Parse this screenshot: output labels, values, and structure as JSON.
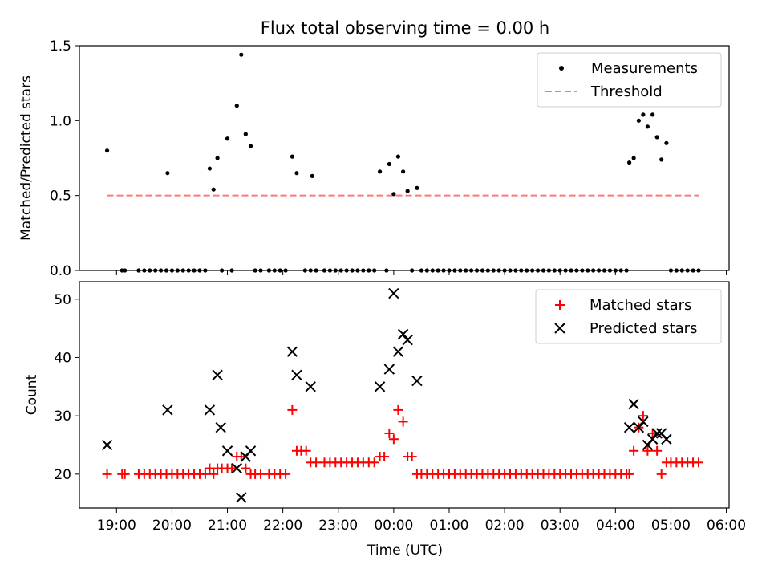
{
  "chart_data": [
    {
      "type": "scatter",
      "title": "Flux total observing time = 0.00 h",
      "ylabel": "Matched/Predicted stars",
      "ylim": [
        0,
        1.5
      ],
      "yticks": [
        "0.0",
        "0.5",
        "1.0",
        "1.5"
      ],
      "grid": false,
      "legend_position": "upper right",
      "legend": [
        "Measurements",
        "Threshold"
      ],
      "threshold": {
        "name": "Threshold",
        "value": 0.5,
        "x_range": [
          18.83,
          29.5
        ],
        "color": "#ff7777"
      },
      "series": [
        {
          "name": "Measurements",
          "color": "#000000",
          "points": [
            [
              18.83,
              0.8
            ],
            [
              19.1,
              0
            ],
            [
              19.15,
              0
            ],
            [
              19.4,
              0
            ],
            [
              19.5,
              0
            ],
            [
              19.6,
              0
            ],
            [
              19.7,
              0
            ],
            [
              19.8,
              0
            ],
            [
              19.9,
              0
            ],
            [
              19.92,
              0.65
            ],
            [
              20.0,
              0
            ],
            [
              20.1,
              0
            ],
            [
              20.2,
              0
            ],
            [
              20.3,
              0
            ],
            [
              20.4,
              0
            ],
            [
              20.5,
              0
            ],
            [
              20.6,
              0
            ],
            [
              20.68,
              0.68
            ],
            [
              20.75,
              0.54
            ],
            [
              20.82,
              0.75
            ],
            [
              20.9,
              0
            ],
            [
              21.0,
              0.88
            ],
            [
              21.08,
              0
            ],
            [
              21.17,
              1.1
            ],
            [
              21.25,
              1.44
            ],
            [
              21.33,
              0.91
            ],
            [
              21.42,
              0.83
            ],
            [
              21.5,
              0
            ],
            [
              21.6,
              0
            ],
            [
              21.75,
              0
            ],
            [
              21.85,
              0
            ],
            [
              21.95,
              0
            ],
            [
              22.05,
              0
            ],
            [
              22.17,
              0.76
            ],
            [
              22.25,
              0.65
            ],
            [
              22.4,
              0
            ],
            [
              22.5,
              0
            ],
            [
              22.53,
              0.63
            ],
            [
              22.6,
              0
            ],
            [
              22.75,
              0
            ],
            [
              22.85,
              0
            ],
            [
              22.95,
              0
            ],
            [
              23.05,
              0
            ],
            [
              23.15,
              0
            ],
            [
              23.25,
              0
            ],
            [
              23.35,
              0
            ],
            [
              23.45,
              0
            ],
            [
              23.55,
              0
            ],
            [
              23.65,
              0
            ],
            [
              23.75,
              0.66
            ],
            [
              23.87,
              0
            ],
            [
              23.92,
              0.71
            ],
            [
              24.0,
              0.51
            ],
            [
              24.08,
              0.76
            ],
            [
              24.17,
              0.66
            ],
            [
              24.25,
              0.53
            ],
            [
              24.33,
              0
            ],
            [
              24.42,
              0.55
            ],
            [
              24.5,
              0
            ],
            [
              24.6,
              0
            ],
            [
              24.7,
              0
            ],
            [
              24.8,
              0
            ],
            [
              24.9,
              0
            ],
            [
              25.0,
              0
            ],
            [
              25.1,
              0
            ],
            [
              25.2,
              0
            ],
            [
              25.3,
              0
            ],
            [
              25.4,
              0
            ],
            [
              25.5,
              0
            ],
            [
              25.6,
              0
            ],
            [
              25.7,
              0
            ],
            [
              25.8,
              0
            ],
            [
              25.9,
              0
            ],
            [
              26.0,
              0
            ],
            [
              26.1,
              0
            ],
            [
              26.2,
              0
            ],
            [
              26.3,
              0
            ],
            [
              26.4,
              0
            ],
            [
              26.5,
              0
            ],
            [
              26.6,
              0
            ],
            [
              26.7,
              0
            ],
            [
              26.8,
              0
            ],
            [
              26.9,
              0
            ],
            [
              27.0,
              0
            ],
            [
              27.1,
              0
            ],
            [
              27.2,
              0
            ],
            [
              27.3,
              0
            ],
            [
              27.4,
              0
            ],
            [
              27.5,
              0
            ],
            [
              27.6,
              0
            ],
            [
              27.7,
              0
            ],
            [
              27.8,
              0
            ],
            [
              27.9,
              0
            ],
            [
              28.0,
              0
            ],
            [
              28.1,
              0
            ],
            [
              28.2,
              0
            ],
            [
              28.25,
              0.72
            ],
            [
              28.33,
              0.75
            ],
            [
              28.42,
              1.0
            ],
            [
              28.5,
              1.04
            ],
            [
              28.58,
              0.96
            ],
            [
              28.67,
              1.04
            ],
            [
              28.75,
              0.89
            ],
            [
              28.83,
              0.74
            ],
            [
              28.92,
              0.85
            ],
            [
              29.0,
              0
            ],
            [
              29.1,
              0
            ],
            [
              29.2,
              0
            ],
            [
              29.3,
              0
            ],
            [
              29.4,
              0
            ],
            [
              29.5,
              0
            ]
          ]
        }
      ]
    },
    {
      "type": "scatter",
      "xlabel": "Time (UTC)",
      "ylabel": "Count",
      "xlim": [
        18.33,
        30.05
      ],
      "ylim": [
        14.2,
        53
      ],
      "yticks": [
        "20",
        "30",
        "40",
        "50"
      ],
      "xticks": [
        "19:00",
        "20:00",
        "21:00",
        "22:00",
        "23:00",
        "00:00",
        "01:00",
        "02:00",
        "03:00",
        "04:00",
        "05:00",
        "06:00"
      ],
      "grid": false,
      "legend_position": "upper right",
      "legend": [
        "Matched stars",
        "Predicted stars"
      ],
      "series": [
        {
          "name": "Matched stars",
          "marker": "+",
          "color": "#ff0000",
          "points": [
            [
              18.83,
              20
            ],
            [
              19.1,
              20
            ],
            [
              19.15,
              20
            ],
            [
              19.4,
              20
            ],
            [
              19.5,
              20
            ],
            [
              19.6,
              20
            ],
            [
              19.7,
              20
            ],
            [
              19.8,
              20
            ],
            [
              19.9,
              20
            ],
            [
              20.0,
              20
            ],
            [
              20.1,
              20
            ],
            [
              20.2,
              20
            ],
            [
              20.3,
              20
            ],
            [
              20.4,
              20
            ],
            [
              20.5,
              20
            ],
            [
              20.6,
              20
            ],
            [
              20.68,
              21
            ],
            [
              20.75,
              20
            ],
            [
              20.82,
              21
            ],
            [
              20.9,
              21
            ],
            [
              21.0,
              21
            ],
            [
              21.08,
              21
            ],
            [
              21.17,
              23
            ],
            [
              21.25,
              23
            ],
            [
              21.33,
              21
            ],
            [
              21.42,
              20
            ],
            [
              21.5,
              20
            ],
            [
              21.6,
              20
            ],
            [
              21.75,
              20
            ],
            [
              21.85,
              20
            ],
            [
              21.95,
              20
            ],
            [
              22.05,
              20
            ],
            [
              22.17,
              31
            ],
            [
              22.25,
              24
            ],
            [
              22.33,
              24
            ],
            [
              22.42,
              24
            ],
            [
              22.5,
              22
            ],
            [
              22.6,
              22
            ],
            [
              22.75,
              22
            ],
            [
              22.85,
              22
            ],
            [
              22.95,
              22
            ],
            [
              23.05,
              22
            ],
            [
              23.15,
              22
            ],
            [
              23.25,
              22
            ],
            [
              23.35,
              22
            ],
            [
              23.45,
              22
            ],
            [
              23.55,
              22
            ],
            [
              23.65,
              22
            ],
            [
              23.75,
              23
            ],
            [
              23.83,
              23
            ],
            [
              23.92,
              27
            ],
            [
              24.0,
              26
            ],
            [
              24.08,
              31
            ],
            [
              24.17,
              29
            ],
            [
              24.25,
              23
            ],
            [
              24.33,
              23
            ],
            [
              24.42,
              20
            ],
            [
              24.5,
              20
            ],
            [
              24.6,
              20
            ],
            [
              24.7,
              20
            ],
            [
              24.8,
              20
            ],
            [
              24.9,
              20
            ],
            [
              25.0,
              20
            ],
            [
              25.1,
              20
            ],
            [
              25.2,
              20
            ],
            [
              25.3,
              20
            ],
            [
              25.4,
              20
            ],
            [
              25.5,
              20
            ],
            [
              25.6,
              20
            ],
            [
              25.7,
              20
            ],
            [
              25.8,
              20
            ],
            [
              25.9,
              20
            ],
            [
              26.0,
              20
            ],
            [
              26.1,
              20
            ],
            [
              26.2,
              20
            ],
            [
              26.3,
              20
            ],
            [
              26.4,
              20
            ],
            [
              26.5,
              20
            ],
            [
              26.6,
              20
            ],
            [
              26.7,
              20
            ],
            [
              26.8,
              20
            ],
            [
              26.9,
              20
            ],
            [
              27.0,
              20
            ],
            [
              27.1,
              20
            ],
            [
              27.2,
              20
            ],
            [
              27.3,
              20
            ],
            [
              27.4,
              20
            ],
            [
              27.5,
              20
            ],
            [
              27.6,
              20
            ],
            [
              27.7,
              20
            ],
            [
              27.8,
              20
            ],
            [
              27.9,
              20
            ],
            [
              28.0,
              20
            ],
            [
              28.1,
              20
            ],
            [
              28.2,
              20
            ],
            [
              28.25,
              20
            ],
            [
              28.33,
              24
            ],
            [
              28.42,
              28
            ],
            [
              28.5,
              30
            ],
            [
              28.58,
              24
            ],
            [
              28.67,
              27
            ],
            [
              28.75,
              24
            ],
            [
              28.83,
              20
            ],
            [
              28.92,
              22
            ],
            [
              29.0,
              22
            ],
            [
              29.1,
              22
            ],
            [
              29.2,
              22
            ],
            [
              29.3,
              22
            ],
            [
              29.4,
              22
            ],
            [
              29.5,
              22
            ]
          ]
        },
        {
          "name": "Predicted stars",
          "marker": "x",
          "color": "#000000",
          "points": [
            [
              18.83,
              25
            ],
            [
              19.92,
              31
            ],
            [
              20.68,
              31
            ],
            [
              20.82,
              37
            ],
            [
              20.88,
              28
            ],
            [
              21.0,
              24
            ],
            [
              21.17,
              21
            ],
            [
              21.25,
              16
            ],
            [
              21.33,
              23
            ],
            [
              21.42,
              24
            ],
            [
              22.17,
              41
            ],
            [
              22.25,
              37
            ],
            [
              22.5,
              35
            ],
            [
              23.75,
              35
            ],
            [
              23.92,
              38
            ],
            [
              24.0,
              51
            ],
            [
              24.08,
              41
            ],
            [
              24.17,
              44
            ],
            [
              24.25,
              43
            ],
            [
              24.42,
              36
            ],
            [
              28.25,
              28
            ],
            [
              28.33,
              32
            ],
            [
              28.42,
              28
            ],
            [
              28.5,
              29
            ],
            [
              28.58,
              25
            ],
            [
              28.67,
              26
            ],
            [
              28.75,
              27
            ],
            [
              28.83,
              27
            ],
            [
              28.92,
              26
            ]
          ]
        }
      ]
    }
  ]
}
